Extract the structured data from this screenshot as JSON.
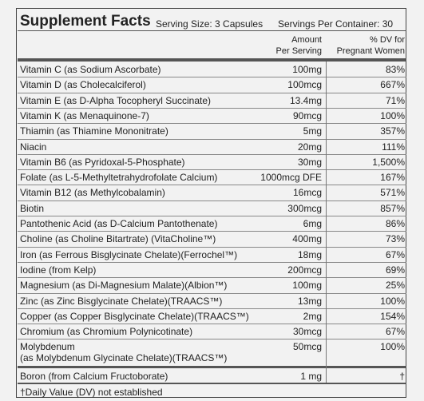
{
  "header": {
    "title": "Supplement Facts",
    "serving_size": "Serving Size: 3 Capsules",
    "servings_per_container": "Servings Per Container: 30"
  },
  "column_headers": {
    "amount": [
      "Amount",
      "Per Serving"
    ],
    "dv": [
      "% DV for",
      "Pregnant Women"
    ]
  },
  "rows": [
    [
      "Vitamin C (as Sodium Ascorbate)",
      "100mg",
      "83%"
    ],
    [
      "Vitamin D (as Cholecalciferol)",
      "100mcg",
      "667%"
    ],
    [
      "Vitamin E (as D-Alpha Tocopheryl Succinate)",
      "13.4mg",
      "71%"
    ],
    [
      "Vitamin K (as Menaquinone-7)",
      "90mcg",
      "100%"
    ],
    [
      "Thiamin (as Thiamine Mononitrate)",
      "5mg",
      "357%"
    ],
    [
      "Niacin",
      "20mg",
      "111%"
    ],
    [
      "Vitamin B6 (as Pyridoxal-5-Phosphate)",
      "30mg",
      "1,500%"
    ],
    [
      "Folate (as L-5-Methyltetrahydrofolate Calcium)",
      "1000mcg DFE",
      "167%"
    ],
    [
      "Vitamin B12 (as Methylcobalamin)",
      "16mcg",
      "571%"
    ],
    [
      "Biotin",
      "300mcg",
      "857%"
    ],
    [
      "Pantothenic Acid (as D-Calcium Pantothenate)",
      "6mg",
      "86%"
    ],
    [
      "Choline (as Choline Bitartrate) (VitaCholine™)",
      "400mg",
      "73%"
    ],
    [
      "Iron (as Ferrous Bisglycinate Chelate)(Ferrochel™)",
      "18mg",
      "67%"
    ],
    [
      "Iodine (from Kelp)",
      "200mcg",
      "69%"
    ],
    [
      "Magnesium (as Di-Magnesium Malate)(Albion™)",
      "100mg",
      "25%"
    ],
    [
      "Zinc (as Zinc Bisglycinate Chelate)(TRAACS™)",
      "13mg",
      "100%"
    ],
    [
      "Copper (as Copper Bisglycinate Chelate)(TRAACS™)",
      "2mg",
      "154%"
    ],
    [
      "Chromium (as Chromium Polynicotinate)",
      "30mcg",
      "67%"
    ],
    [
      "Molybdenum\n(as Molybdenum Glycinate Chelate)(TRAACS™)",
      "50mcg",
      "100%"
    ]
  ],
  "boron_row": [
    "Boron (from Calcium Fructoborate)",
    "1 mg",
    "†"
  ],
  "footnote": "†Daily Value (DV) not established"
}
